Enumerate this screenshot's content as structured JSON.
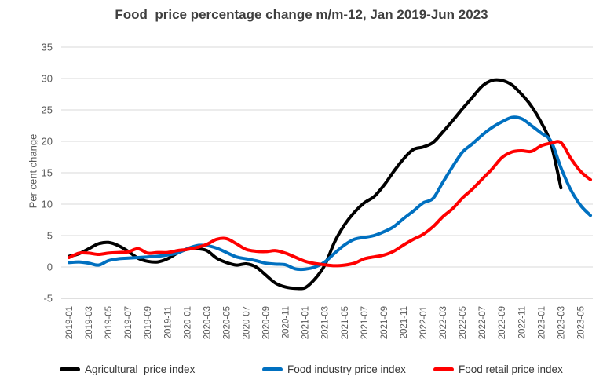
{
  "chart_data": {
    "type": "line",
    "title": "Food  price percentage change m/m-12, Jan 2019-Jun 2023",
    "ylabel": "Per cent change",
    "ylim": [
      -5,
      35
    ],
    "ytick_step": 5,
    "yticks": [
      35,
      30,
      25,
      20,
      15,
      10,
      5,
      0,
      -5
    ],
    "grid": true,
    "legend_position": "bottom",
    "xtick_every": 2,
    "x": [
      "2019-01",
      "2019-02",
      "2019-03",
      "2019-04",
      "2019-05",
      "2019-06",
      "2019-07",
      "2019-08",
      "2019-09",
      "2019-10",
      "2019-11",
      "2019-12",
      "2020-01",
      "2020-02",
      "2020-03",
      "2020-04",
      "2020-05",
      "2020-06",
      "2020-07",
      "2020-08",
      "2020-09",
      "2020-10",
      "2020-11",
      "2020-12",
      "2021-01",
      "2021-02",
      "2021-03",
      "2021-04",
      "2021-05",
      "2021-06",
      "2021-07",
      "2021-08",
      "2021-09",
      "2021-10",
      "2021-11",
      "2021-12",
      "2022-01",
      "2022-02",
      "2022-03",
      "2022-04",
      "2022-05",
      "2022-06",
      "2022-07",
      "2022-08",
      "2022-09",
      "2022-10",
      "2022-11",
      "2022-12",
      "2023-01",
      "2023-02",
      "2023-03",
      "2023-04",
      "2023-05",
      "2023-06"
    ],
    "series": [
      {
        "id": "agricultural",
        "name": "Agricultural  price index",
        "color": "#000000",
        "values": [
          1.7,
          2.1,
          2.9,
          3.7,
          3.9,
          3.4,
          2.5,
          1.4,
          0.9,
          0.8,
          1.3,
          2.2,
          2.8,
          2.9,
          2.6,
          1.4,
          0.7,
          0.3,
          0.5,
          0.0,
          -1.3,
          -2.6,
          -3.2,
          -3.4,
          -3.3,
          -1.9,
          0.3,
          4.0,
          6.7,
          8.7,
          10.2,
          11.2,
          13.0,
          15.2,
          17.2,
          18.7,
          19.1,
          19.8,
          21.5,
          23.3,
          25.2,
          27.0,
          28.8,
          29.7,
          29.7,
          29.0,
          27.5,
          25.6,
          23.0,
          19.5,
          12.6,
          null,
          null,
          null
        ]
      },
      {
        "id": "food-industry",
        "name": "Food industry price index",
        "color": "#0070c0",
        "values": [
          0.7,
          0.8,
          0.6,
          0.3,
          1.0,
          1.3,
          1.4,
          1.5,
          1.6,
          1.7,
          1.9,
          2.2,
          2.9,
          3.4,
          3.4,
          3.0,
          2.3,
          1.6,
          1.3,
          1.0,
          0.6,
          0.45,
          0.35,
          -0.3,
          -0.35,
          0.0,
          0.8,
          2.2,
          3.5,
          4.4,
          4.7,
          5.0,
          5.6,
          6.4,
          7.7,
          8.9,
          10.2,
          10.9,
          13.5,
          16.0,
          18.3,
          19.6,
          21.0,
          22.2,
          23.1,
          23.8,
          23.6,
          22.5,
          21.3,
          20.0,
          15.8,
          12.3,
          9.8,
          8.2
        ]
      },
      {
        "id": "food-retail",
        "name": "Food retail price index",
        "color": "#ff0000",
        "values": [
          1.5,
          2.2,
          2.2,
          2.0,
          2.2,
          2.3,
          2.4,
          2.9,
          2.2,
          2.3,
          2.3,
          2.6,
          2.8,
          3.1,
          3.6,
          4.4,
          4.5,
          3.7,
          2.8,
          2.5,
          2.45,
          2.6,
          2.2,
          1.55,
          0.9,
          0.55,
          0.35,
          0.2,
          0.3,
          0.6,
          1.3,
          1.6,
          1.9,
          2.5,
          3.5,
          4.4,
          5.2,
          6.4,
          8.0,
          9.3,
          11.0,
          12.4,
          14.0,
          15.6,
          17.4,
          18.3,
          18.5,
          18.4,
          19.3,
          19.7,
          19.8,
          17.3,
          15.2,
          13.9
        ]
      }
    ],
    "style": {
      "gridline_color": "#d9d9d9",
      "axis_line_color": "#bfbfbf",
      "tick_label_color": "#595959",
      "line_width": 4
    }
  }
}
